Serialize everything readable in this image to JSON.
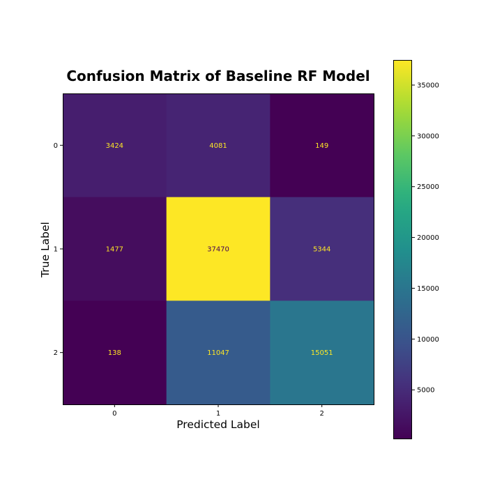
{
  "chart_data": {
    "type": "heatmap",
    "title": "Confusion Matrix of Baseline RF Model",
    "xlabel": "Predicted Label",
    "ylabel": "True Label",
    "x_categories": [
      "0",
      "1",
      "2"
    ],
    "y_categories": [
      "0",
      "1",
      "2"
    ],
    "matrix": [
      [
        3424,
        4081,
        149
      ],
      [
        1477,
        37470,
        5344
      ],
      [
        138,
        11047,
        15051
      ]
    ],
    "colormap": "viridis",
    "colorbar": {
      "min": 138,
      "max": 37470,
      "ticks": [
        5000,
        10000,
        15000,
        20000,
        25000,
        30000,
        35000
      ],
      "tick_labels": [
        "5000",
        "10000",
        "15000",
        "20000",
        "25000",
        "30000",
        "35000"
      ]
    },
    "text_color_light": "#fde725",
    "text_color_dark": "#440154",
    "grid": false
  }
}
